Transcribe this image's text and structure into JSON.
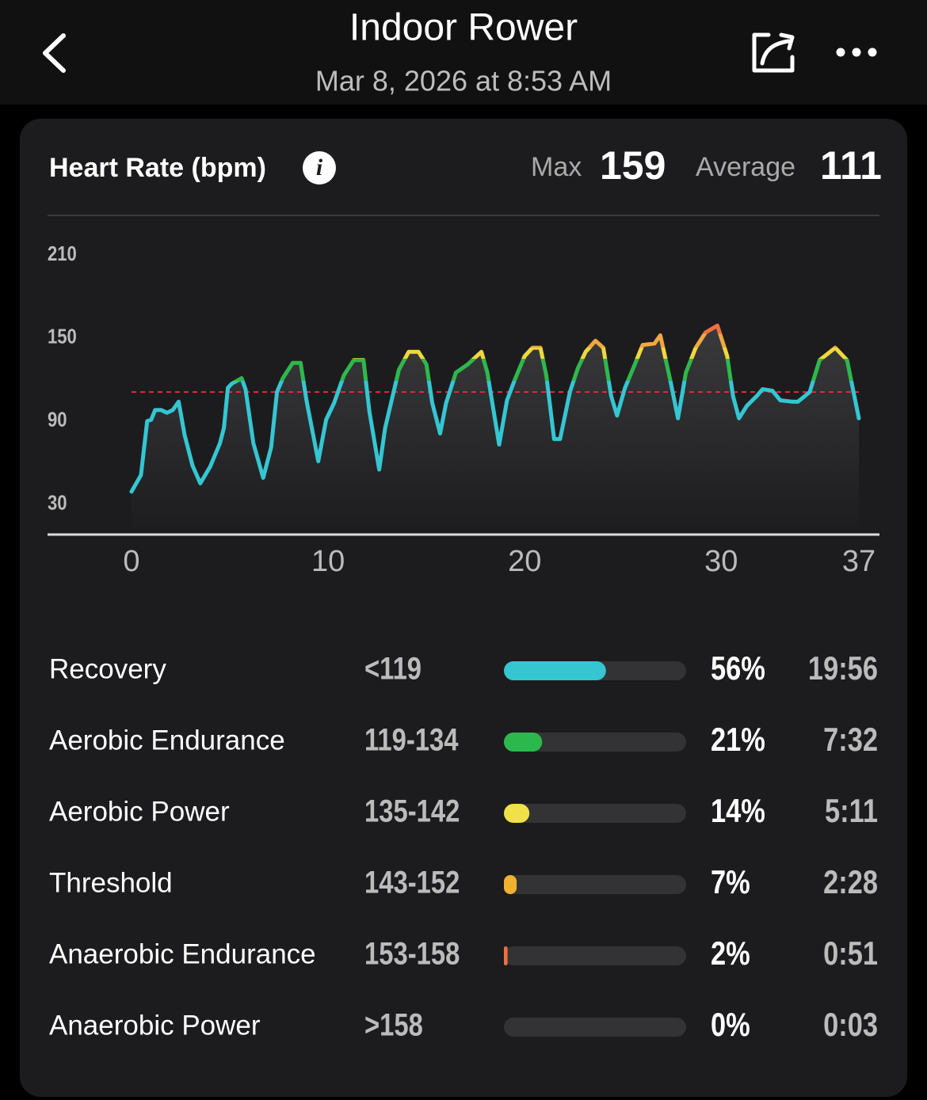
{
  "header": {
    "title": "Indoor Rower",
    "subtitle": "Mar 8, 2026 at 8:53 AM"
  },
  "card": {
    "title": "Heart Rate (bpm)",
    "max_label": "Max",
    "max": 159,
    "average_label": "Average",
    "average": 111
  },
  "chart_data": {
    "type": "line",
    "x": [
      0,
      0.48,
      0.8,
      1.0,
      1.2,
      1.5,
      1.8,
      2.1,
      2.4,
      2.7,
      3.1,
      3.5,
      4.0,
      4.5,
      4.7,
      4.9,
      5.1,
      5.6,
      5.8,
      6.2,
      6.7,
      7.1,
      7.4,
      7.7,
      8.2,
      8.6,
      8.9,
      9.5,
      9.9,
      10.3,
      10.8,
      11.3,
      11.8,
      12.1,
      12.6,
      12.9,
      13.2,
      13.6,
      14.1,
      14.6,
      15.0,
      15.3,
      15.7,
      16.0,
      16.5,
      17.1,
      17.8,
      18.1,
      18.7,
      19.1,
      19.5,
      20.0,
      20.4,
      20.8,
      21.1,
      21.5,
      21.8,
      22.3,
      22.7,
      23.1,
      23.6,
      24.0,
      24.4,
      24.7,
      25.1,
      25.6,
      26.0,
      26.6,
      26.9,
      27.4,
      27.8,
      28.2,
      28.7,
      29.2,
      29.8,
      30.3,
      30.6,
      30.9,
      31.3,
      31.8,
      32.1,
      32.6,
      33.0,
      33.6,
      33.9,
      34.5,
      35.0,
      35.8,
      36.4,
      37.0
    ],
    "values": [
      39,
      51,
      90,
      91,
      98,
      98,
      96,
      98,
      104,
      80,
      58,
      45,
      57,
      74,
      85,
      114,
      117,
      121,
      113,
      74,
      49,
      71,
      111,
      121,
      132,
      132,
      105,
      61,
      91,
      103,
      123,
      134,
      134,
      97,
      55,
      85,
      103,
      127,
      140,
      140,
      131,
      103,
      81,
      103,
      125,
      131,
      140,
      125,
      73,
      105,
      120,
      137,
      143,
      143,
      123,
      77,
      77,
      111,
      128,
      140,
      148,
      143,
      108,
      94,
      114,
      131,
      145,
      146,
      152,
      120,
      92,
      125,
      143,
      154,
      159,
      137,
      108,
      92,
      101,
      108,
      113,
      112,
      105,
      104,
      104,
      111,
      134,
      143,
      134,
      92
    ],
    "line_color": "#35c6d2",
    "line_color_stops": [
      {
        "value": 119,
        "color": "#2db84d"
      },
      {
        "value": 135,
        "color": "#f0d83c"
      },
      {
        "value": 143,
        "color": "#f0a840"
      },
      {
        "value": 153,
        "color": "#ee7040"
      }
    ],
    "average_line_color": "#e0283c",
    "xlim": [
      0,
      37
    ],
    "xticks": [
      0,
      10,
      20,
      30,
      37
    ],
    "ylim": [
      8,
      210
    ],
    "yticks": [
      30,
      90,
      150,
      210
    ]
  },
  "zones": [
    {
      "name": "Recovery",
      "range": "<119",
      "percent": 56,
      "percent_label": "56%",
      "time": "19:56",
      "color": "#35c6d2"
    },
    {
      "name": "Aerobic Endurance",
      "range": "119-134",
      "percent": 21,
      "percent_label": "21%",
      "time": "7:32",
      "color": "#2db84d"
    },
    {
      "name": "Aerobic Power",
      "range": "135-142",
      "percent": 14,
      "percent_label": "14%",
      "time": "5:11",
      "color": "#f0e04a"
    },
    {
      "name": "Threshold",
      "range": "143-152",
      "percent": 7,
      "percent_label": "7%",
      "time": "2:28",
      "color": "#f0b030"
    },
    {
      "name": "Anaerobic Endurance",
      "range": "153-158",
      "percent": 2,
      "percent_label": "2%",
      "time": "0:51",
      "color": "#ee7040"
    },
    {
      "name": "Anaerobic Power",
      "range": ">158",
      "percent": 0,
      "percent_label": "0%",
      "time": "0:03",
      "color": "#e0283c"
    }
  ]
}
